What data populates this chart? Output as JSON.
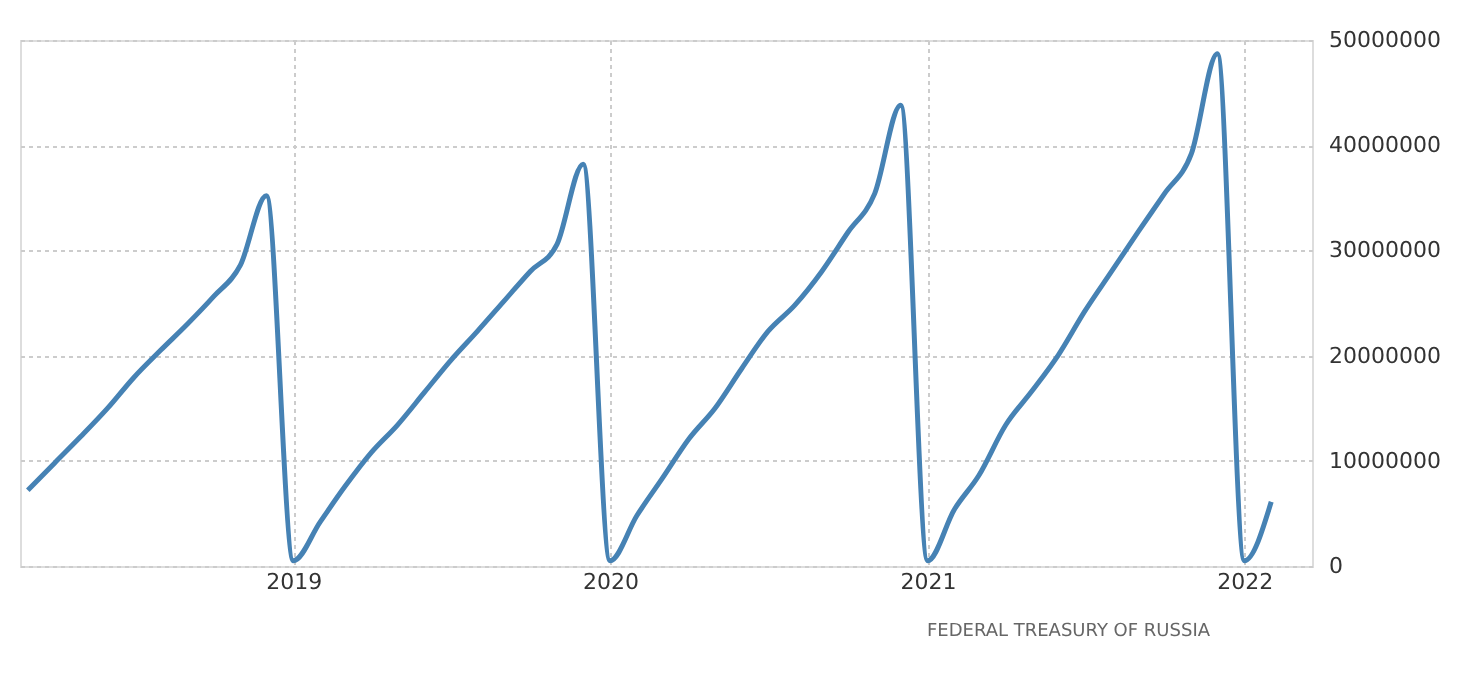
{
  "chart_data": {
    "type": "line",
    "x": [
      "2018-03",
      "2018-04",
      "2018-05",
      "2018-06",
      "2018-07",
      "2018-08",
      "2018-09",
      "2018-10",
      "2018-11",
      "2018-12",
      "2019-01",
      "2019-02",
      "2019-03",
      "2019-04",
      "2019-05",
      "2019-06",
      "2019-07",
      "2019-08",
      "2019-09",
      "2019-10",
      "2019-11",
      "2019-12",
      "2020-01",
      "2020-02",
      "2020-03",
      "2020-04",
      "2020-05",
      "2020-06",
      "2020-07",
      "2020-08",
      "2020-09",
      "2020-10",
      "2020-11",
      "2020-12",
      "2021-01",
      "2021-02",
      "2021-03",
      "2021-04",
      "2021-05",
      "2021-06",
      "2021-07",
      "2021-08",
      "2021-09",
      "2021-10",
      "2021-11",
      "2021-12",
      "2022-01",
      "2022-02"
    ],
    "series": [
      {
        "color": "#4682b4",
        "values": [
          7200000,
          9800000,
          12300000,
          15000000,
          17900000,
          20500000,
          23000000,
          25600000,
          28600000,
          35200000,
          500000,
          4200000,
          7500000,
          10800000,
          13400000,
          16500000,
          19500000,
          22300000,
          25200000,
          28000000,
          30600000,
          38200000,
          500000,
          4800000,
          8300000,
          12100000,
          15000000,
          18800000,
          22300000,
          24800000,
          28000000,
          31700000,
          35400000,
          43800000,
          500000,
          5400000,
          8600000,
          13400000,
          16600000,
          20100000,
          24200000,
          28000000,
          31800000,
          35400000,
          39200000,
          48700000,
          500000,
          6100000
        ]
      }
    ],
    "xlim": [
      "2018-02-20",
      "2022-03-20"
    ],
    "xticks": [
      {
        "value": "2019-01-01",
        "label": "2019"
      },
      {
        "value": "2020-01-01",
        "label": "2020"
      },
      {
        "value": "2021-01-01",
        "label": "2021"
      },
      {
        "value": "2022-01-01",
        "label": "2022"
      }
    ],
    "ylim": [
      0,
      50000000
    ],
    "yticks": [
      {
        "value": 0,
        "label": "0"
      },
      {
        "value": 10000000,
        "label": "10000000"
      },
      {
        "value": 20000000,
        "label": "20000000"
      },
      {
        "value": 30000000,
        "label": "30000000"
      },
      {
        "value": 40000000,
        "label": "40000000"
      },
      {
        "value": 50000000,
        "label": "50000000"
      }
    ],
    "grid": true,
    "marker": "none",
    "line_style": "solid",
    "annotations": [
      "FEDERAL TREASURY OF RUSSIA"
    ]
  }
}
